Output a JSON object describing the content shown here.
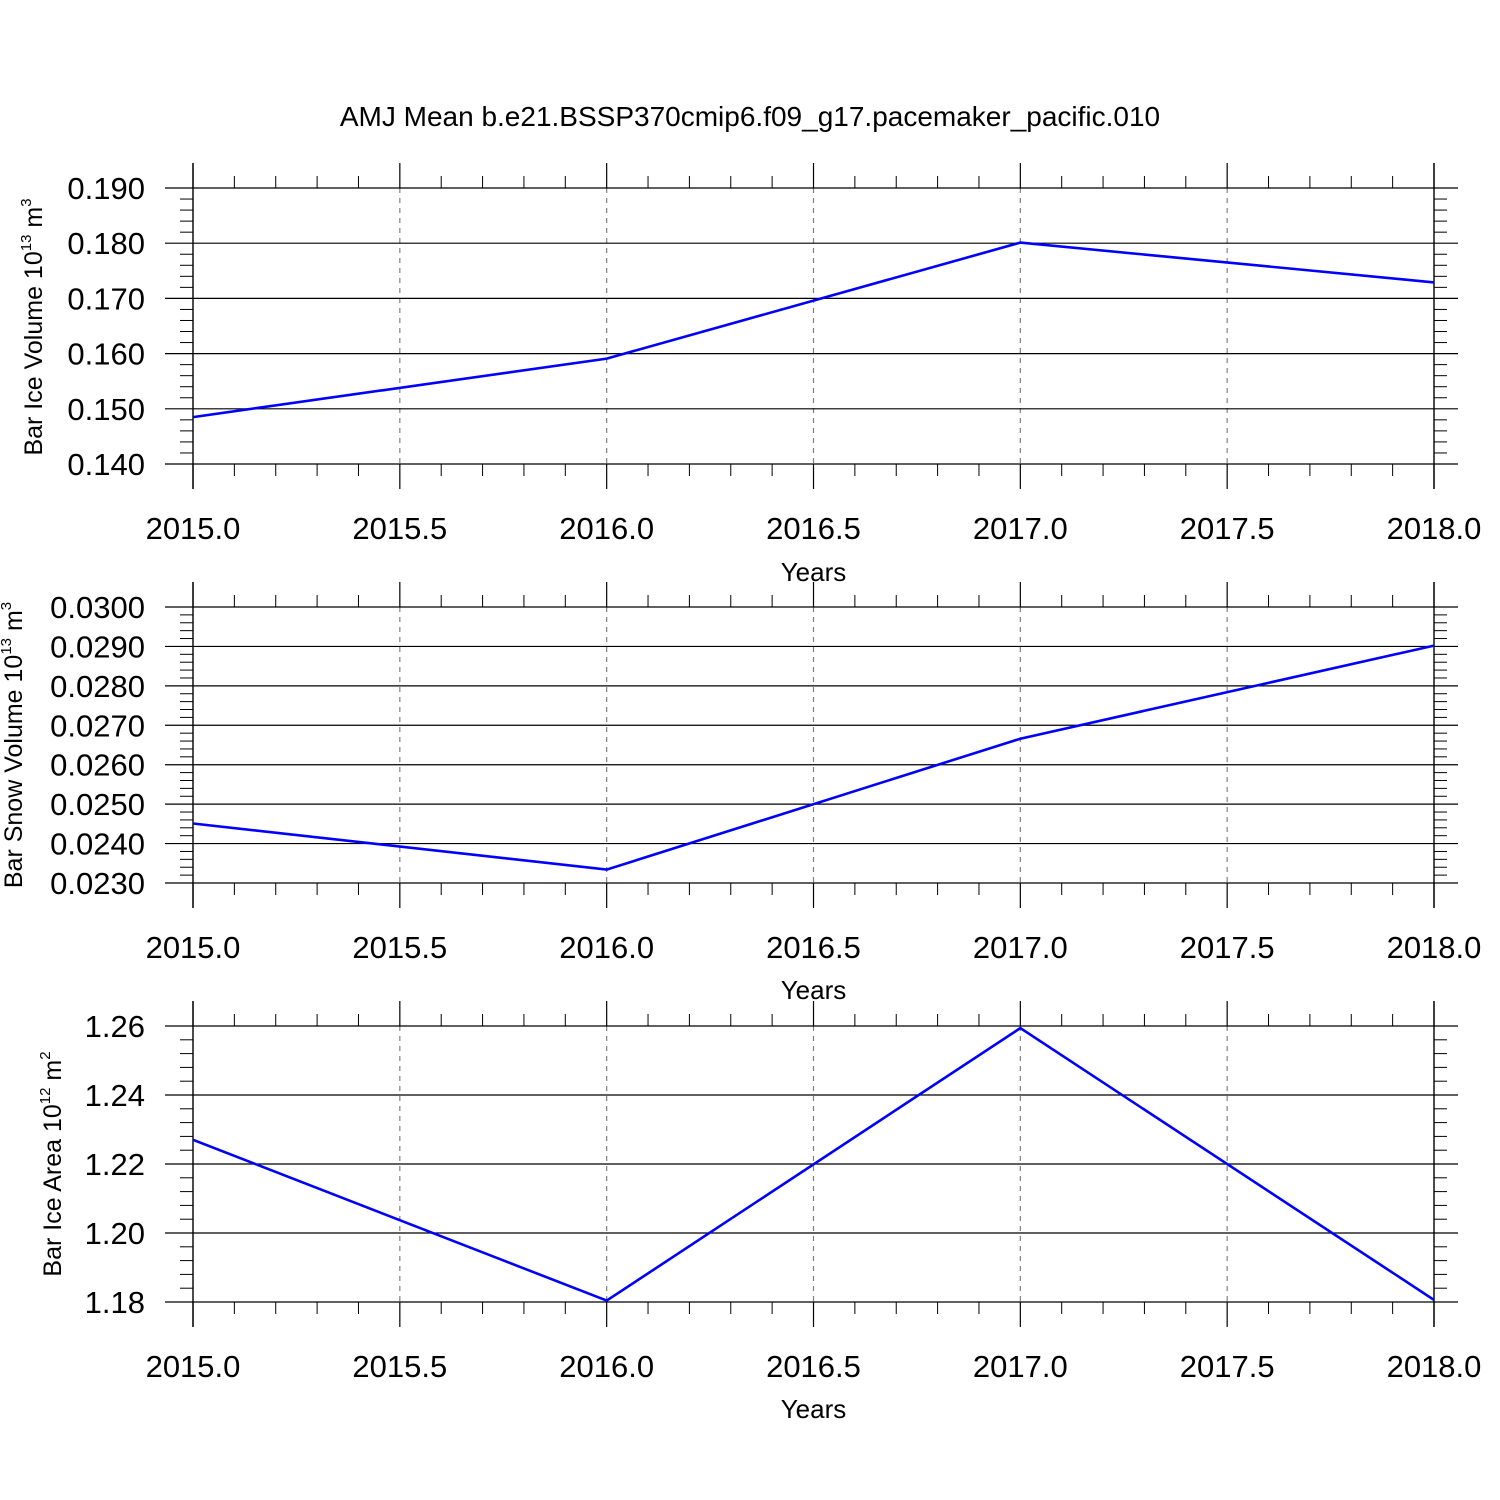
{
  "figure_title": "AMJ Mean b.e21.BSSP370cmip6.f09_g17.pacemaker_pacific.010",
  "colors": {
    "line": "#0000ff",
    "axis": "#000000",
    "grid": "#808080",
    "background": "#ffffff"
  },
  "chart_data": [
    {
      "type": "line",
      "title": "AMJ Mean b.e21.BSSP370cmip6.f09_g17.pacemaker_pacific.010",
      "xlabel": "Years",
      "ylabel": {
        "text": "Bar Ice Volume 10",
        "sup": "13",
        "unit": " m",
        "unit_sup": "3"
      },
      "x": [
        2015,
        2016,
        2017,
        2018
      ],
      "series": [
        {
          "values": [
            0.1485,
            0.1591,
            0.1801,
            0.1729
          ]
        }
      ],
      "xlim": [
        2015,
        2018
      ],
      "ylim": [
        0.14,
        0.19
      ],
      "xticks": [
        2015.0,
        2015.5,
        2016.0,
        2016.5,
        2017.0,
        2017.5,
        2018.0
      ],
      "xtick_labels": [
        "2015.0",
        "2015.5",
        "2016.0",
        "2016.5",
        "2017.0",
        "2017.5",
        "2018.0"
      ],
      "yticks": [
        0.14,
        0.15,
        0.16,
        0.17,
        0.18,
        0.19
      ],
      "ytick_labels": [
        "0.140",
        "0.150",
        "0.160",
        "0.170",
        "0.180",
        "0.190"
      ],
      "grid": "vertical-dashed"
    },
    {
      "type": "line",
      "xlabel": "Years",
      "ylabel": {
        "text": "Bar Snow Volume 10",
        "sup": "13",
        "unit": " m",
        "unit_sup": "3"
      },
      "x": [
        2015,
        2016,
        2017,
        2018
      ],
      "series": [
        {
          "values": [
            0.02451,
            0.02334,
            0.02666,
            0.02902
          ]
        }
      ],
      "xlim": [
        2015,
        2018
      ],
      "ylim": [
        0.023,
        0.03
      ],
      "xticks": [
        2015.0,
        2015.5,
        2016.0,
        2016.5,
        2017.0,
        2017.5,
        2018.0
      ],
      "xtick_labels": [
        "2015.0",
        "2015.5",
        "2016.0",
        "2016.5",
        "2017.0",
        "2017.5",
        "2018.0"
      ],
      "yticks": [
        0.023,
        0.024,
        0.025,
        0.026,
        0.027,
        0.028,
        0.029,
        0.03
      ],
      "ytick_labels": [
        "0.0230",
        "0.0240",
        "0.0250",
        "0.0260",
        "0.0270",
        "0.0280",
        "0.0290",
        "0.0300"
      ],
      "grid": "vertical-dashed"
    },
    {
      "type": "line",
      "xlabel": "Years",
      "ylabel": {
        "text": "Bar Ice Area 10",
        "sup": "12",
        "unit": " m",
        "unit_sup": "2"
      },
      "x": [
        2015,
        2016,
        2017,
        2018
      ],
      "series": [
        {
          "values": [
            1.227,
            1.1804,
            1.2594,
            1.1806
          ]
        }
      ],
      "xlim": [
        2015,
        2018
      ],
      "ylim": [
        1.18,
        1.26
      ],
      "xticks": [
        2015.0,
        2015.5,
        2016.0,
        2016.5,
        2017.0,
        2017.5,
        2018.0
      ],
      "xtick_labels": [
        "2015.0",
        "2015.5",
        "2016.0",
        "2016.5",
        "2017.0",
        "2017.5",
        "2018.0"
      ],
      "yticks": [
        1.18,
        1.2,
        1.22,
        1.24,
        1.26
      ],
      "ytick_labels": [
        "1.18",
        "1.20",
        "1.22",
        "1.24",
        "1.26"
      ],
      "grid": "vertical-dashed"
    }
  ]
}
